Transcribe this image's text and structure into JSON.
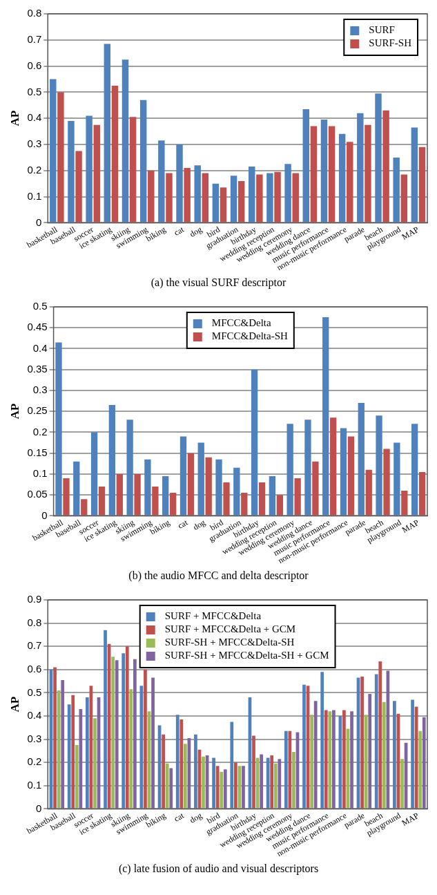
{
  "chart_data": [
    {
      "type": "bar",
      "ylabel": "AP",
      "annotations": [
        "(a) the visual SURF descriptor"
      ],
      "categories": [
        "basketball",
        "baseball",
        "soccer",
        "ice skating",
        "skiing",
        "swimming",
        "biking",
        "cat",
        "dog",
        "bird",
        "graduation",
        "birthday",
        "wedding reception",
        "wedding ceremony",
        "wedding dance",
        "music performance",
        "non-music performance",
        "parade",
        "beach",
        "playground",
        "MAP"
      ],
      "series": [
        {
          "name": "SURF",
          "color": "#4f81bd",
          "values": [
            0.55,
            0.39,
            0.41,
            0.685,
            0.625,
            0.47,
            0.315,
            0.3,
            0.22,
            0.15,
            0.18,
            0.215,
            0.19,
            0.225,
            0.435,
            0.395,
            0.34,
            0.42,
            0.495,
            0.25,
            0.365
          ]
        },
        {
          "name": "SURF-SH",
          "color": "#c0504d",
          "values": [
            0.5,
            0.275,
            0.375,
            0.525,
            0.405,
            0.2,
            0.19,
            0.21,
            0.19,
            0.135,
            0.16,
            0.185,
            0.195,
            0.19,
            0.37,
            0.37,
            0.31,
            0.375,
            0.43,
            0.185,
            0.29
          ]
        }
      ],
      "ylim": [
        0,
        0.8
      ],
      "yticks": [
        0,
        0.1,
        0.2,
        0.3,
        0.4,
        0.5,
        0.6,
        0.7,
        0.8
      ],
      "grid": "y",
      "legend": "top right"
    },
    {
      "type": "bar",
      "ylabel": "AP",
      "annotations": [
        "(b) the audio MFCC and delta descriptor"
      ],
      "categories": [
        "basketball",
        "baseball",
        "soccer",
        "ice skating",
        "skiing",
        "swimming",
        "biking",
        "cat",
        "dog",
        "bird",
        "graduation",
        "birthday",
        "wedding reception",
        "wedding ceremony",
        "wedding dance",
        "music performance",
        "non-music performance",
        "parade",
        "beach",
        "playground",
        "MAP"
      ],
      "series": [
        {
          "name": "MFCC&Delta",
          "color": "#4f81bd",
          "values": [
            0.415,
            0.13,
            0.2,
            0.265,
            0.23,
            0.135,
            0.095,
            0.19,
            0.175,
            0.135,
            0.115,
            0.35,
            0.095,
            0.22,
            0.23,
            0.475,
            0.21,
            0.27,
            0.24,
            0.175,
            0.22
          ]
        },
        {
          "name": "MFCC&Delta-SH",
          "color": "#c0504d",
          "values": [
            0.09,
            0.04,
            0.07,
            0.1,
            0.1,
            0.07,
            0.055,
            0.15,
            0.14,
            0.08,
            0.055,
            0.08,
            0.05,
            0.09,
            0.13,
            0.235,
            0.19,
            0.11,
            0.16,
            0.06,
            0.105
          ]
        }
      ],
      "ylim": [
        0,
        0.5
      ],
      "yticks": [
        0,
        0.05,
        0.1,
        0.15,
        0.2,
        0.25,
        0.3,
        0.35,
        0.4,
        0.45,
        0.5
      ],
      "grid": "y",
      "legend": "top"
    },
    {
      "type": "bar",
      "ylabel": "AP",
      "annotations": [
        "(c) late fusion of audio and visual descriptors"
      ],
      "categories": [
        "basketball",
        "baseball",
        "soccer",
        "ice skating",
        "skiing",
        "swimming",
        "biking",
        "cat",
        "dog",
        "bird",
        "graduation",
        "birthday",
        "wedding reception",
        "wedding ceremony",
        "wedding dance",
        "music performance",
        "non-music performance",
        "parade",
        "beach",
        "playground",
        "MAP"
      ],
      "series": [
        {
          "name": "SURF + MFCC&Delta",
          "color": "#4f81bd",
          "values": [
            0.6,
            0.45,
            0.48,
            0.77,
            0.67,
            0.53,
            0.36,
            0.405,
            0.32,
            0.22,
            0.375,
            0.48,
            0.22,
            0.335,
            0.535,
            0.59,
            0.4,
            0.565,
            0.58,
            0.465,
            0.47
          ]
        },
        {
          "name": "SURF + MFCC&Delta + GCM",
          "color": "#c0504d",
          "values": [
            0.61,
            0.49,
            0.53,
            0.71,
            0.7,
            0.6,
            0.32,
            0.385,
            0.255,
            0.185,
            0.2,
            0.315,
            0.23,
            0.335,
            0.53,
            0.425,
            0.425,
            0.57,
            0.635,
            0.41,
            0.44
          ]
        },
        {
          "name": "SURF-SH + MFCC&Delta-SH",
          "color": "#9bbb59",
          "values": [
            0.51,
            0.275,
            0.39,
            0.655,
            0.515,
            0.42,
            0.195,
            0.28,
            0.225,
            0.16,
            0.185,
            0.22,
            0.195,
            0.245,
            0.405,
            0.42,
            0.345,
            0.405,
            0.46,
            0.215,
            0.335
          ]
        },
        {
          "name": "SURF-SH + MFCC&Delta-SH + GCM",
          "color": "#8064a2",
          "values": [
            0.555,
            0.43,
            0.48,
            0.64,
            0.645,
            0.565,
            0.175,
            0.305,
            0.23,
            0.17,
            0.185,
            0.235,
            0.215,
            0.33,
            0.465,
            0.425,
            0.42,
            0.495,
            0.595,
            0.285,
            0.395
          ]
        }
      ],
      "ylim": [
        0,
        0.9
      ],
      "yticks": [
        0,
        0.1,
        0.2,
        0.3,
        0.4,
        0.5,
        0.6,
        0.7,
        0.8,
        0.9
      ],
      "grid": "y",
      "legend": "top"
    }
  ]
}
